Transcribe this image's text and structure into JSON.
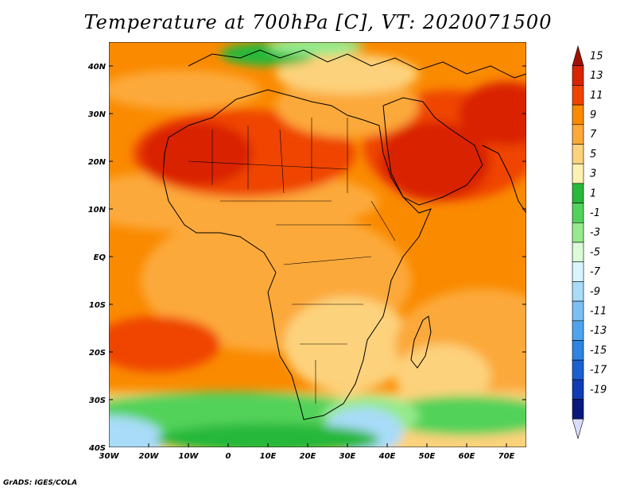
{
  "title": "Temperature at 700hPa [C], VT: 2020071500",
  "credit": "GrADS: IGES/COLA",
  "map": {
    "region": "Africa and Arabian Peninsula",
    "lon_range": [
      -30,
      76
    ],
    "lat_range": [
      -40,
      45
    ],
    "lat_ticks": [
      "40N",
      "30N",
      "20N",
      "10N",
      "EQ",
      "10S",
      "20S",
      "30S",
      "40S"
    ],
    "lon_ticks": [
      "30W",
      "20W",
      "10W",
      "0",
      "10E",
      "20E",
      "30E",
      "40E",
      "50E",
      "60E",
      "70E"
    ]
  },
  "colorbar": {
    "labels": [
      "15",
      "13",
      "11",
      "9",
      "7",
      "5",
      "3",
      "1",
      "-1",
      "-3",
      "-5",
      "-7",
      "-9",
      "-11",
      "-13",
      "-15",
      "-17",
      "-19"
    ],
    "colors": [
      "#a01200",
      "#d92400",
      "#ef4400",
      "#fa8a00",
      "#fca93a",
      "#fdd27c",
      "#fff2b0",
      "#28b83a",
      "#52d25a",
      "#96ea8c",
      "#dafad8",
      "#d8f4fc",
      "#a8dcf8",
      "#7ac0f2",
      "#4ea4ec",
      "#2e84e0",
      "#1a60d0",
      "#0e3cb4",
      "#08187a",
      "#d8dcff"
    ]
  }
}
